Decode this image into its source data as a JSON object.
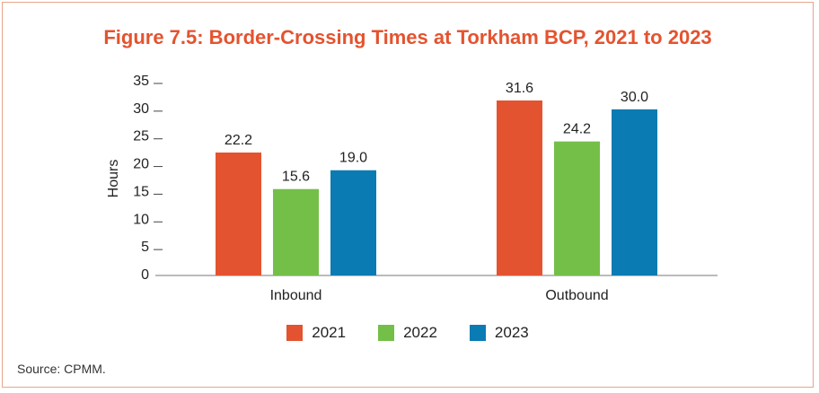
{
  "title": "Figure 7.5: Border-Crossing Times at Torkham BCP, 2021 to 2023",
  "source": "Source: CPMM.",
  "chart_data": {
    "type": "bar",
    "title": "Figure 7.5: Border-Crossing Times at Torkham BCP, 2021 to 2023",
    "xlabel": "",
    "ylabel": "Hours",
    "ylim": [
      0,
      35
    ],
    "yticks": [
      0,
      5,
      10,
      15,
      20,
      25,
      30,
      35
    ],
    "categories": [
      "Inbound",
      "Outbound"
    ],
    "series": [
      {
        "name": "2021",
        "color": "#e4532f",
        "values": [
          22.2,
          31.6
        ]
      },
      {
        "name": "2022",
        "color": "#74bf48",
        "values": [
          15.6,
          24.2
        ]
      },
      {
        "name": "2023",
        "color": "#0a7bb3",
        "values": [
          19.0,
          30.0
        ]
      }
    ],
    "data_labels": true,
    "legend": "bottom-center",
    "grid": false
  }
}
